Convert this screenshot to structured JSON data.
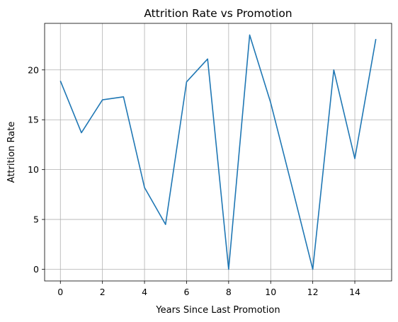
{
  "chart_data": {
    "type": "line",
    "title": "Attrition Rate vs Promotion",
    "xlabel": "Years Since Last Promotion",
    "ylabel": "Attrition Rate",
    "x": [
      0,
      1,
      2,
      3,
      4,
      5,
      6,
      7,
      8,
      9,
      10,
      11,
      12,
      13,
      14,
      15
    ],
    "series": [
      {
        "values": [
          18.9,
          13.7,
          17.0,
          17.3,
          8.2,
          4.5,
          18.8,
          21.1,
          0.0,
          23.5,
          16.7,
          8.4,
          0.0,
          20.0,
          11.1,
          23.1
        ],
        "color": "#1f77b4"
      }
    ],
    "xticks": [
      0,
      2,
      4,
      6,
      8,
      10,
      12,
      14
    ],
    "yticks": [
      0,
      5,
      10,
      15,
      20
    ],
    "xlim": [
      -0.75,
      15.75
    ],
    "ylim": [
      -1.17,
      24.67
    ],
    "grid": true,
    "legend": "none"
  }
}
